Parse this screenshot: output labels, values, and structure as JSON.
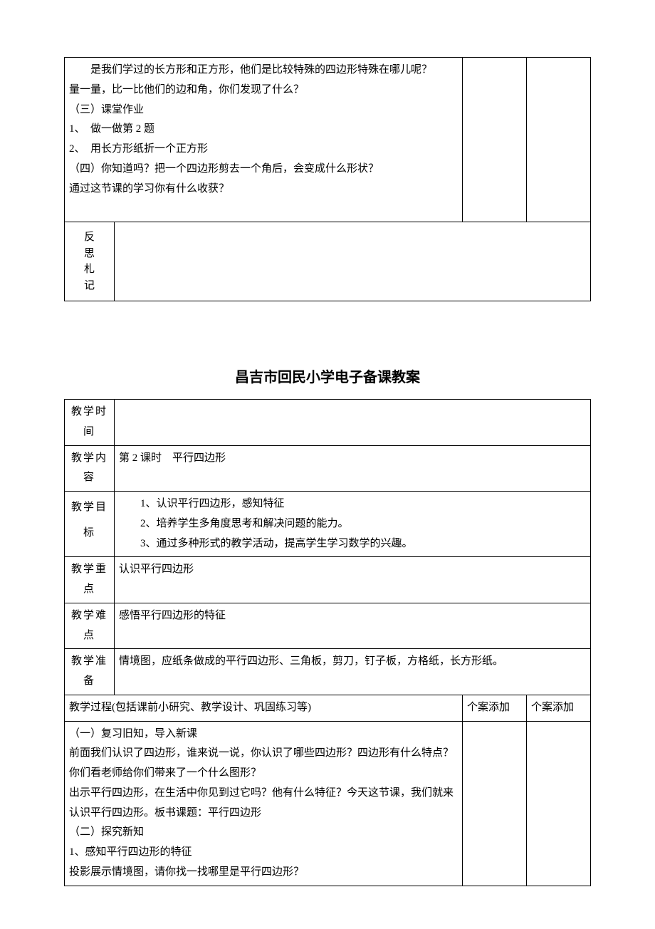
{
  "table1": {
    "content": {
      "p1_indent": "是我们学过的长方形和正方形，他们是比较特殊的四边形特殊在哪儿呢？",
      "p2": "量一量，比一比他们的边和角，你们发现了什么？",
      "p3": "（三）课堂作业",
      "p4": "1、　做一做第 2 题",
      "p5": "2、　用长方形纸折一个正方形",
      "p6": "（四）你知道吗？把一个四边形剪去一个角后，会变成什么形状？",
      "p7": "通过这节课的学习你有什么收获？"
    },
    "reflect_label": [
      "反",
      "思",
      "札",
      "记"
    ]
  },
  "title": "昌吉市回民小学电子备课教案",
  "table2": {
    "rows": {
      "time": {
        "label": "教学时间",
        "value": ""
      },
      "content": {
        "label": "教学内容",
        "value": "第 2 课时　平行四边形"
      },
      "goal": {
        "label": "教学目标",
        "lines": [
          "1、认识平行四边形，感知特征",
          "2、培养学生多角度思考和解决问题的能力。",
          "3、通过多种形式的教学活动，提高学生学习数学的兴趣。"
        ]
      },
      "focus": {
        "label": "教学重点",
        "value": "认识平行四边形"
      },
      "diff": {
        "label": "教学难点",
        "value": "感悟平行四边形的特征"
      },
      "prep": {
        "label": "教学准备",
        "value": "情境图，应纸条做成的平行四边形、三角板，剪刀，钉子板，方格纸，长方形纸。"
      }
    },
    "process_header": {
      "main": "教学过程(包括课前小研究、教学设计、巩固练习等)",
      "note1": "个案添加",
      "note2": "个案添加"
    },
    "process_body": [
      "（一）复习旧知，导入新课",
      "前面我们认识了四边形，谁来说一说，你认识了哪些四边形？四边形有什么特点？",
      "你们看老师给你们带来了一个什么图形？",
      "出示平行四边形，在生活中你见到过它吗？他有什么特征？今天这节课，我们就来认识平行四边形。板书课题：平行四边形",
      "（二）探究新知",
      "1、感知平行四边形的特征",
      "投影展示情境图，请你找一找哪里是平行四边形？"
    ]
  }
}
